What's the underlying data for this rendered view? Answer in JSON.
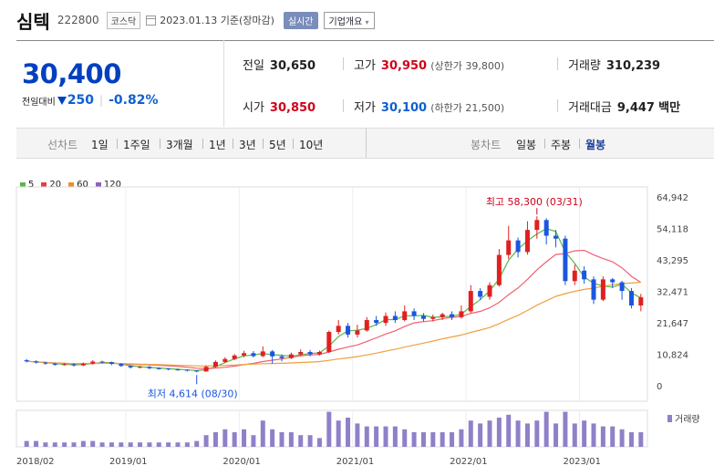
{
  "header": {
    "name": "심텍",
    "code": "222800",
    "market": "코스닥",
    "date": "2023.01.13 기준(장마감)",
    "realtime": "실시간",
    "company": "기업개요"
  },
  "price": {
    "current": "30,400",
    "change_label": "전일대비",
    "change": "250",
    "change_pct": "-0.82%"
  },
  "stats": {
    "prev_label": "전일",
    "prev": "30,650",
    "high_label": "고가",
    "high": "30,950",
    "upper": "(상한가 39,800)",
    "volume_label": "거래량",
    "volume": "310,239",
    "open_label": "시가",
    "open": "30,850",
    "low_label": "저가",
    "low": "30,100",
    "lower": "(하한가 21,500)",
    "amount_label": "거래대금",
    "amount": "9,447",
    "amount_unit": "백만"
  },
  "periods": {
    "line_label": "선차트",
    "line_items": [
      "1일",
      "1주일",
      "3개월",
      "1년",
      "3년",
      "5년",
      "10년"
    ],
    "candle_label": "봉차트",
    "candle_items": [
      "일봉",
      "주봉",
      "월봉"
    ],
    "candle_active": "월봉"
  },
  "colors": {
    "up": "#e02020",
    "down": "#1a56e0",
    "ma5": "#58b848",
    "ma20": "#f06070",
    "ma60": "#f0a040",
    "ma120": "#9070c0",
    "volume": "#9080c8"
  },
  "chart_data": {
    "type": "candlestick",
    "legend": [
      {
        "name": "5",
        "color": "#58b848"
      },
      {
        "name": "20",
        "color": "#e04040"
      },
      {
        "name": "60",
        "color": "#f08c30"
      },
      {
        "name": "120",
        "color": "#9060c0"
      }
    ],
    "y_ticks": [
      "64,942",
      "54,118",
      "43,295",
      "32,471",
      "21,647",
      "10,824",
      "0"
    ],
    "y_tick_values": [
      64942,
      54118,
      43295,
      32471,
      21647,
      10824,
      0
    ],
    "x_ticks": [
      "2018/02",
      "2019/01",
      "2020/01",
      "2021/01",
      "2022/01",
      "2023/01"
    ],
    "high_annotation": "최고 58,300 (03/31)",
    "low_annotation": "최저 4,614 (08/30)",
    "volume_label": "거래량",
    "candles": [
      {
        "o": 8800,
        "c": 8400,
        "h": 9200,
        "l": 8000
      },
      {
        "o": 8400,
        "c": 8000,
        "h": 8700,
        "l": 7600
      },
      {
        "o": 8000,
        "c": 7600,
        "h": 8300,
        "l": 7200
      },
      {
        "o": 7600,
        "c": 7200,
        "h": 8000,
        "l": 6900
      },
      {
        "o": 7200,
        "c": 7400,
        "h": 7800,
        "l": 6900
      },
      {
        "o": 7400,
        "c": 7000,
        "h": 7800,
        "l": 6600
      },
      {
        "o": 7000,
        "c": 7600,
        "h": 8000,
        "l": 6700
      },
      {
        "o": 7600,
        "c": 8300,
        "h": 8800,
        "l": 7300
      },
      {
        "o": 8300,
        "c": 8100,
        "h": 8600,
        "l": 7700
      },
      {
        "o": 8100,
        "c": 7500,
        "h": 8300,
        "l": 7100
      },
      {
        "o": 7500,
        "c": 6800,
        "h": 7800,
        "l": 6500
      },
      {
        "o": 6800,
        "c": 6300,
        "h": 7000,
        "l": 5900
      },
      {
        "o": 6300,
        "c": 6500,
        "h": 6900,
        "l": 6000
      },
      {
        "o": 6500,
        "c": 6000,
        "h": 6800,
        "l": 5700
      },
      {
        "o": 6000,
        "c": 5900,
        "h": 6300,
        "l": 5600
      },
      {
        "o": 5900,
        "c": 5600,
        "h": 6100,
        "l": 5300
      },
      {
        "o": 5600,
        "c": 5500,
        "h": 5800,
        "l": 5200
      },
      {
        "o": 5500,
        "c": 5200,
        "h": 5600,
        "l": 4900
      },
      {
        "o": 5200,
        "c": 4900,
        "h": 5300,
        "l": 4614
      },
      {
        "o": 4900,
        "c": 6500,
        "h": 7000,
        "l": 4800
      },
      {
        "o": 6500,
        "c": 8200,
        "h": 8700,
        "l": 6200
      },
      {
        "o": 8200,
        "c": 9200,
        "h": 9800,
        "l": 7800
      },
      {
        "o": 9200,
        "c": 10400,
        "h": 10900,
        "l": 8800
      },
      {
        "o": 10400,
        "c": 11200,
        "h": 12000,
        "l": 9800
      },
      {
        "o": 11200,
        "c": 10200,
        "h": 11900,
        "l": 9700
      },
      {
        "o": 10200,
        "c": 11800,
        "h": 13500,
        "l": 9800
      },
      {
        "o": 11800,
        "c": 10100,
        "h": 12300,
        "l": 7600
      },
      {
        "o": 10100,
        "c": 9500,
        "h": 10800,
        "l": 8400
      },
      {
        "o": 9500,
        "c": 10800,
        "h": 11400,
        "l": 9200
      },
      {
        "o": 10800,
        "c": 11600,
        "h": 12500,
        "l": 10200
      },
      {
        "o": 11600,
        "c": 10800,
        "h": 12300,
        "l": 10100
      },
      {
        "o": 10800,
        "c": 11600,
        "h": 12100,
        "l": 10400
      },
      {
        "o": 11600,
        "c": 18500,
        "h": 19000,
        "l": 11300
      },
      {
        "o": 18500,
        "c": 20600,
        "h": 22600,
        "l": 17600
      },
      {
        "o": 20600,
        "c": 17600,
        "h": 21600,
        "l": 16600
      },
      {
        "o": 17600,
        "c": 19000,
        "h": 21000,
        "l": 16600
      },
      {
        "o": 19000,
        "c": 22600,
        "h": 23600,
        "l": 18600
      },
      {
        "o": 22600,
        "c": 21600,
        "h": 24000,
        "l": 20600
      },
      {
        "o": 21600,
        "c": 24000,
        "h": 25200,
        "l": 20600
      },
      {
        "o": 24000,
        "c": 22600,
        "h": 25600,
        "l": 21600
      },
      {
        "o": 22600,
        "c": 25600,
        "h": 27600,
        "l": 22100
      },
      {
        "o": 25600,
        "c": 24000,
        "h": 26600,
        "l": 22600
      },
      {
        "o": 24000,
        "c": 23000,
        "h": 25000,
        "l": 22100
      },
      {
        "o": 23000,
        "c": 23600,
        "h": 24500,
        "l": 22100
      },
      {
        "o": 23600,
        "c": 24600,
        "h": 25100,
        "l": 22600
      },
      {
        "o": 24600,
        "c": 23600,
        "h": 25600,
        "l": 22600
      },
      {
        "o": 23600,
        "c": 25600,
        "h": 27600,
        "l": 23100
      },
      {
        "o": 25600,
        "c": 32600,
        "h": 34600,
        "l": 25100
      },
      {
        "o": 32600,
        "c": 30600,
        "h": 33600,
        "l": 29600
      },
      {
        "o": 30600,
        "c": 34600,
        "h": 35600,
        "l": 29600
      },
      {
        "o": 34600,
        "c": 45000,
        "h": 47000,
        "l": 34100
      },
      {
        "o": 45000,
        "c": 50000,
        "h": 55000,
        "l": 43600
      },
      {
        "o": 50000,
        "c": 46000,
        "h": 51000,
        "l": 44100
      },
      {
        "o": 46000,
        "c": 53600,
        "h": 56600,
        "l": 45100
      },
      {
        "o": 53600,
        "c": 57000,
        "h": 58300,
        "l": 50600
      },
      {
        "o": 57000,
        "c": 51600,
        "h": 57600,
        "l": 48600
      },
      {
        "o": 51600,
        "c": 50600,
        "h": 53600,
        "l": 47600
      },
      {
        "o": 50600,
        "c": 36000,
        "h": 51600,
        "l": 34600
      },
      {
        "o": 36000,
        "c": 39600,
        "h": 41600,
        "l": 34600
      },
      {
        "o": 39600,
        "c": 36600,
        "h": 41100,
        "l": 35100
      },
      {
        "o": 36600,
        "c": 29600,
        "h": 37600,
        "l": 28100
      },
      {
        "o": 29600,
        "c": 36600,
        "h": 37600,
        "l": 29100
      },
      {
        "o": 36600,
        "c": 35600,
        "h": 37100,
        "l": 33600
      },
      {
        "o": 35600,
        "c": 32600,
        "h": 36100,
        "l": 29600
      },
      {
        "o": 32600,
        "c": 27600,
        "h": 33600,
        "l": 26600
      },
      {
        "o": 27600,
        "c": 30400,
        "h": 31600,
        "l": 25600
      }
    ]
  }
}
